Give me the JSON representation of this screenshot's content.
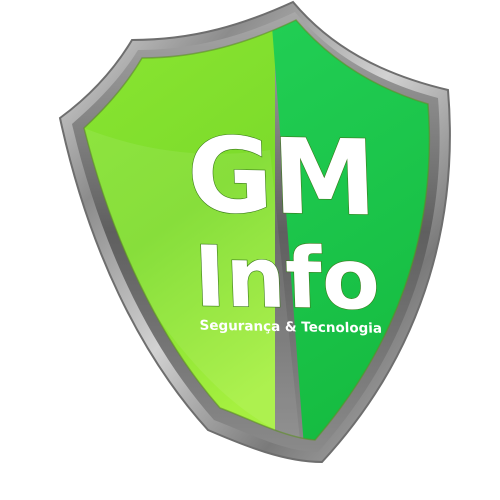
{
  "logo": {
    "line1": "GM",
    "line2": "Info",
    "tagline": "Segurança & Tecnologia"
  },
  "colors": {
    "background": "#ffffff",
    "shield_left": "#7fe12c",
    "shield_right": "#1cc84a",
    "rim": "#9a9a9a",
    "text": "#ffffff"
  }
}
